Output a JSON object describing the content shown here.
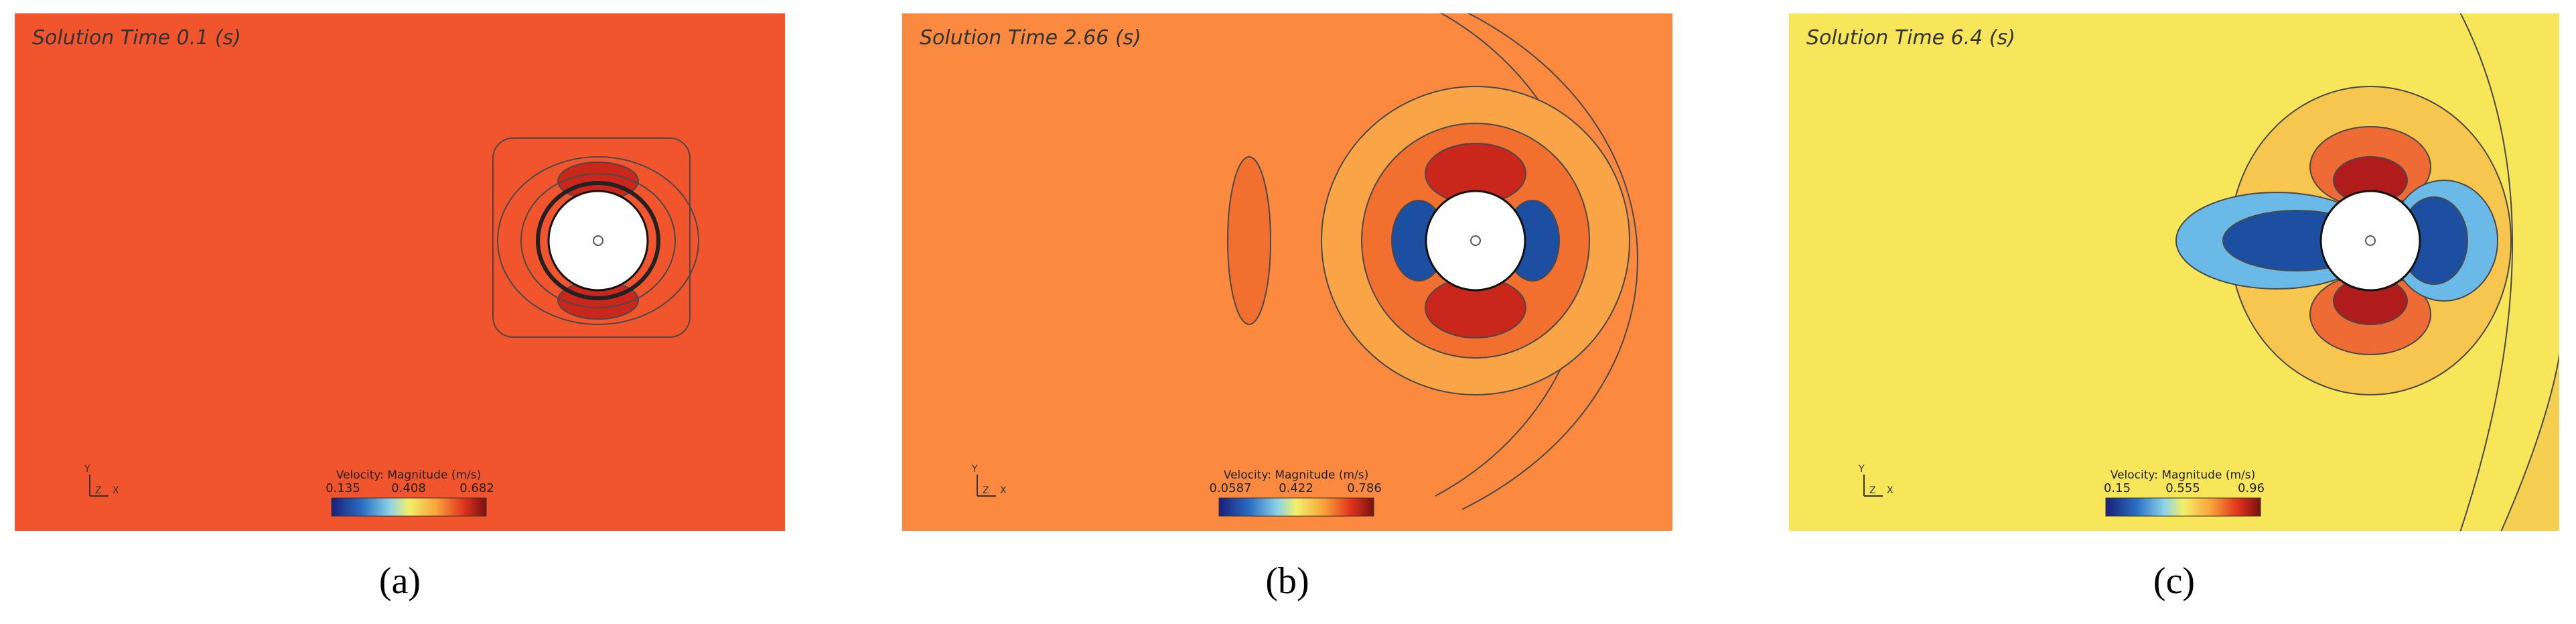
{
  "panels": [
    {
      "title": "Solution Time 0.1 (s)",
      "colorbar_title": "Velocity: Magnitude (m/s)",
      "colorbar_ticks": [
        "0.135",
        "0.408",
        "0.682"
      ],
      "axes": [
        "Y",
        "Z",
        "X"
      ],
      "caption": "(a)"
    },
    {
      "title": "Solution Time 2.66 (s)",
      "colorbar_title": "Velocity: Magnitude (m/s)",
      "colorbar_ticks": [
        "0.0587",
        "0.422",
        "0.786"
      ],
      "axes": [
        "Y",
        "Z",
        "X"
      ],
      "caption": "(b)"
    },
    {
      "title": "Solution Time 6.4 (s)",
      "colorbar_title": "Velocity: Magnitude (m/s)",
      "colorbar_ticks": [
        "0.15",
        "0.555",
        "0.96"
      ],
      "axes": [
        "Y",
        "Z",
        "X"
      ],
      "caption": "(c)"
    }
  ]
}
